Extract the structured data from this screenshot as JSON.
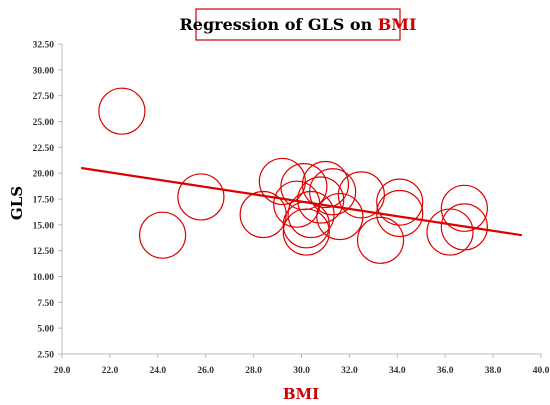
{
  "chart_data": {
    "type": "scatter",
    "title": {
      "prefix": "Regression of GLS on ",
      "highlight": "BMI"
    },
    "xlabel": "BMI",
    "ylabel": "GLS",
    "xlim": [
      20,
      40
    ],
    "ylim": [
      2.5,
      32.5
    ],
    "x_ticks": [
      "20.0",
      "22.0",
      "24.0",
      "26.0",
      "28.0",
      "30.0",
      "32.0",
      "34.0",
      "36.0",
      "38.0",
      "40.0"
    ],
    "y_ticks": [
      "2.50",
      "5.00",
      "7.50",
      "10.00",
      "12.50",
      "15.00",
      "17.50",
      "20.00",
      "22.50",
      "25.00",
      "27.50",
      "30.00",
      "32.50"
    ],
    "grid": false,
    "points": [
      {
        "x": 22.5,
        "y": 26.0
      },
      {
        "x": 24.2,
        "y": 14.0
      },
      {
        "x": 25.8,
        "y": 17.7
      },
      {
        "x": 28.4,
        "y": 16.0
      },
      {
        "x": 29.2,
        "y": 19.2
      },
      {
        "x": 29.8,
        "y": 17.0
      },
      {
        "x": 30.1,
        "y": 18.7
      },
      {
        "x": 30.2,
        "y": 15.0
      },
      {
        "x": 30.2,
        "y": 14.3
      },
      {
        "x": 30.4,
        "y": 16.0
      },
      {
        "x": 30.8,
        "y": 17.4
      },
      {
        "x": 31.0,
        "y": 18.9
      },
      {
        "x": 31.3,
        "y": 18.2
      },
      {
        "x": 31.6,
        "y": 15.8
      },
      {
        "x": 32.5,
        "y": 17.9
      },
      {
        "x": 33.3,
        "y": 13.5
      },
      {
        "x": 34.1,
        "y": 17.2
      },
      {
        "x": 34.1,
        "y": 16.1
      },
      {
        "x": 36.2,
        "y": 14.3
      },
      {
        "x": 36.8,
        "y": 16.6
      },
      {
        "x": 36.8,
        "y": 14.8
      }
    ],
    "regression": {
      "x": [
        20.8,
        39.2
      ],
      "y": [
        20.5,
        14.0
      ]
    },
    "colors": {
      "marker": "#dd0000",
      "line": "#dd0000",
      "title_border": "#cc0000",
      "xlabel": "#cc0000"
    }
  }
}
